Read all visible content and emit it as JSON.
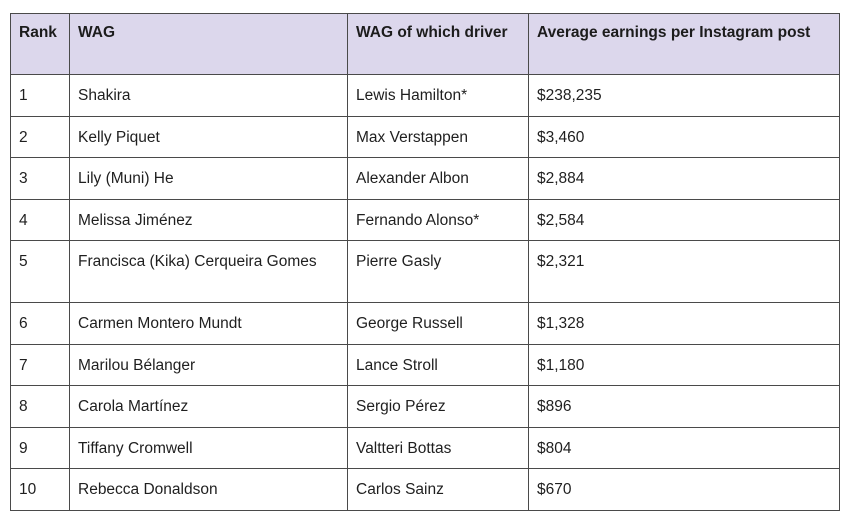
{
  "table": {
    "headers": {
      "rank": "Rank",
      "wag": "WAG",
      "driver": "WAG of which driver",
      "earnings": "Average earnings per Instagram post"
    },
    "rows": [
      {
        "rank": "1",
        "wag": "Shakira",
        "driver": "Lewis Hamilton*",
        "earnings": "$238,235"
      },
      {
        "rank": "2",
        "wag": "Kelly Piquet",
        "driver": "Max Verstappen",
        "earnings": "$3,460"
      },
      {
        "rank": "3",
        "wag": "Lily (Muni) He",
        "driver": "Alexander Albon",
        "earnings": "$2,884"
      },
      {
        "rank": "4",
        "wag": "Melissa Jiménez",
        "driver": "Fernando Alonso*",
        "earnings": "$2,584"
      },
      {
        "rank": "5",
        "wag": "Francisca (Kika) Cerqueira Gomes",
        "driver": "Pierre Gasly",
        "earnings": "$2,321"
      },
      {
        "rank": "6",
        "wag": "Carmen Montero Mundt",
        "driver": "George Russell",
        "earnings": "$1,328"
      },
      {
        "rank": "7",
        "wag": "Marilou Bélanger",
        "driver": "Lance Stroll",
        "earnings": "$1,180"
      },
      {
        "rank": "8",
        "wag": "Carola Martínez",
        "driver": "Sergio Pérez",
        "earnings": "$896"
      },
      {
        "rank": "9",
        "wag": "Tiffany Cromwell",
        "driver": "Valtteri Bottas",
        "earnings": "$804"
      },
      {
        "rank": "10",
        "wag": "Rebecca Donaldson",
        "driver": "Carlos Sainz",
        "earnings": "$670"
      }
    ]
  },
  "colors": {
    "header_background": "#dcd7ec",
    "border": "#4a4a4a"
  }
}
